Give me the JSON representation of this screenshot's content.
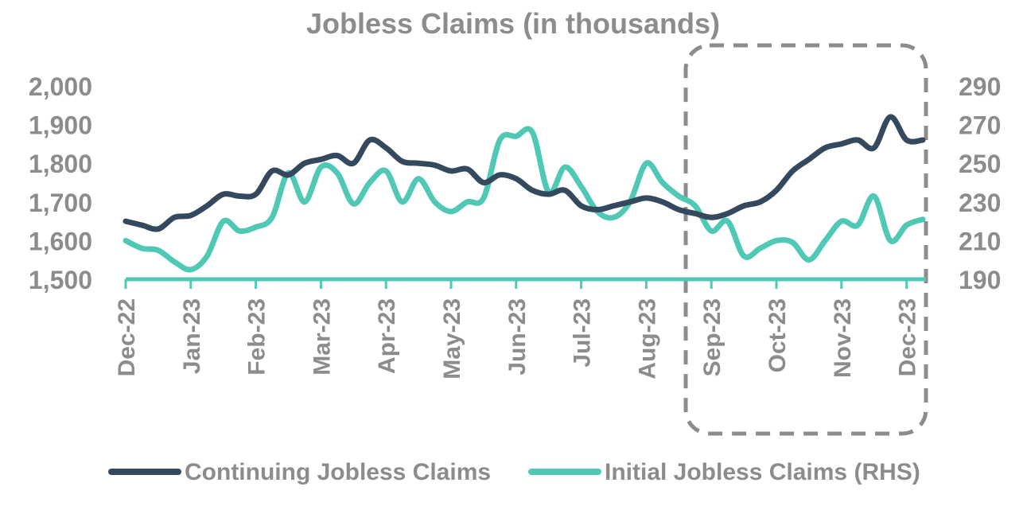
{
  "chart_data": {
    "type": "line",
    "title": "Jobless Claims (in thousands)",
    "xlabel": "",
    "ylabel": "",
    "x_ticks": [
      "Dec-22",
      "Jan-23",
      "Feb-23",
      "Mar-23",
      "Apr-23",
      "May-23",
      "Jun-23",
      "Jul-23",
      "Aug-23",
      "Sep-23",
      "Oct-23",
      "Nov-23",
      "Dec-23"
    ],
    "y_left": {
      "min": 1500,
      "max": 2000,
      "ticks": [
        "1,500",
        "1,600",
        "1,700",
        "1,800",
        "1,900",
        "2,000"
      ]
    },
    "y_right": {
      "min": 190,
      "max": 290,
      "ticks": [
        "190",
        "210",
        "230",
        "250",
        "270",
        "290"
      ]
    },
    "grid": false,
    "legend_position": "bottom",
    "highlight_box": {
      "from": "Aug-23",
      "to": "Dec-23",
      "style": "dashed",
      "color": "#8c8c8c"
    },
    "series": [
      {
        "name": "Continuing Jobless Claims",
        "axis": "left",
        "color": "#34495e",
        "x": [
          0,
          0.25,
          0.5,
          0.75,
          1,
          1.25,
          1.5,
          1.75,
          2,
          2.25,
          2.5,
          2.75,
          3,
          3.25,
          3.5,
          3.75,
          4,
          4.25,
          4.5,
          4.75,
          5,
          5.25,
          5.5,
          5.75,
          6,
          6.25,
          6.5,
          6.75,
          7,
          7.25,
          7.5,
          7.75,
          8,
          8.25,
          8.5,
          8.75,
          9,
          9.25,
          9.5,
          9.75,
          10,
          10.25,
          10.5,
          10.75,
          11,
          11.25,
          11.5,
          11.75,
          12,
          12.25
        ],
        "values": [
          1650,
          1640,
          1630,
          1660,
          1665,
          1690,
          1720,
          1715,
          1720,
          1780,
          1770,
          1800,
          1810,
          1820,
          1800,
          1860,
          1840,
          1805,
          1800,
          1795,
          1780,
          1785,
          1750,
          1770,
          1760,
          1730,
          1720,
          1730,
          1690,
          1680,
          1690,
          1700,
          1710,
          1700,
          1680,
          1670,
          1660,
          1670,
          1690,
          1700,
          1730,
          1780,
          1810,
          1840,
          1850,
          1860,
          1840,
          1920,
          1860,
          1860
        ]
      },
      {
        "name": "Initial Jobless Claims (RHS)",
        "axis": "right",
        "color": "#4fc9b6",
        "x": [
          0,
          0.25,
          0.5,
          0.75,
          1,
          1.25,
          1.5,
          1.75,
          2,
          2.25,
          2.5,
          2.75,
          3,
          3.25,
          3.5,
          3.75,
          4,
          4.25,
          4.5,
          4.75,
          5,
          5.25,
          5.5,
          5.75,
          6,
          6.25,
          6.5,
          6.75,
          7,
          7.25,
          7.5,
          7.75,
          8,
          8.25,
          8.5,
          8.75,
          9,
          9.25,
          9.5,
          9.75,
          10,
          10.25,
          10.5,
          10.75,
          11,
          11.25,
          11.5,
          11.75,
          12,
          12.25
        ],
        "values": [
          210,
          206,
          205,
          199,
          195,
          202,
          220,
          215,
          217,
          222,
          245,
          230,
          248,
          245,
          229,
          240,
          246,
          230,
          242,
          230,
          225,
          230,
          232,
          262,
          264,
          266,
          235,
          248,
          238,
          225,
          222,
          230,
          250,
          240,
          233,
          228,
          215,
          220,
          202,
          206,
          210,
          209,
          200,
          210,
          220,
          218,
          233,
          210,
          218,
          221
        ]
      }
    ]
  }
}
